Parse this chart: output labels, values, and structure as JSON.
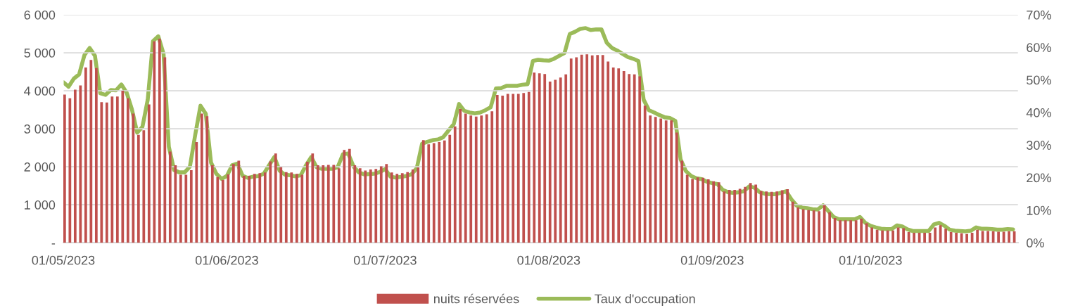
{
  "chart_data": {
    "type": "bar",
    "x": [
      "2023-05-01",
      "2023-05-02",
      "2023-05-03",
      "2023-05-04",
      "2023-05-05",
      "2023-05-06",
      "2023-05-07",
      "2023-05-08",
      "2023-05-09",
      "2023-05-10",
      "2023-05-11",
      "2023-05-12",
      "2023-05-13",
      "2023-05-14",
      "2023-05-15",
      "2023-05-16",
      "2023-05-17",
      "2023-05-18",
      "2023-05-19",
      "2023-05-20",
      "2023-05-21",
      "2023-05-22",
      "2023-05-23",
      "2023-05-24",
      "2023-05-25",
      "2023-05-26",
      "2023-05-27",
      "2023-05-28",
      "2023-05-29",
      "2023-05-30",
      "2023-05-31",
      "2023-06-01",
      "2023-06-02",
      "2023-06-03",
      "2023-06-04",
      "2023-06-05",
      "2023-06-06",
      "2023-06-07",
      "2023-06-08",
      "2023-06-09",
      "2023-06-10",
      "2023-06-11",
      "2023-06-12",
      "2023-06-13",
      "2023-06-14",
      "2023-06-15",
      "2023-06-16",
      "2023-06-17",
      "2023-06-18",
      "2023-06-19",
      "2023-06-20",
      "2023-06-21",
      "2023-06-22",
      "2023-06-23",
      "2023-06-24",
      "2023-06-25",
      "2023-06-26",
      "2023-06-27",
      "2023-06-28",
      "2023-06-29",
      "2023-06-30",
      "2023-07-01",
      "2023-07-02",
      "2023-07-03",
      "2023-07-04",
      "2023-07-05",
      "2023-07-06",
      "2023-07-07",
      "2023-07-08",
      "2023-07-09",
      "2023-07-10",
      "2023-07-11",
      "2023-07-12",
      "2023-07-13",
      "2023-07-14",
      "2023-07-15",
      "2023-07-16",
      "2023-07-17",
      "2023-07-18",
      "2023-07-19",
      "2023-07-20",
      "2023-07-21",
      "2023-07-22",
      "2023-07-23",
      "2023-07-24",
      "2023-07-25",
      "2023-07-26",
      "2023-07-27",
      "2023-07-28",
      "2023-07-29",
      "2023-07-30",
      "2023-07-31",
      "2023-08-01",
      "2023-08-02",
      "2023-08-03",
      "2023-08-04",
      "2023-08-05",
      "2023-08-06",
      "2023-08-07",
      "2023-08-08",
      "2023-08-09",
      "2023-08-10",
      "2023-08-11",
      "2023-08-12",
      "2023-08-13",
      "2023-08-14",
      "2023-08-15",
      "2023-08-16",
      "2023-08-17",
      "2023-08-18",
      "2023-08-19",
      "2023-08-20",
      "2023-08-21",
      "2023-08-22",
      "2023-08-23",
      "2023-08-24",
      "2023-08-25",
      "2023-08-26",
      "2023-08-27",
      "2023-08-28",
      "2023-08-29",
      "2023-08-30",
      "2023-08-31",
      "2023-09-01",
      "2023-09-02",
      "2023-09-03",
      "2023-09-04",
      "2023-09-05",
      "2023-09-06",
      "2023-09-07",
      "2023-09-08",
      "2023-09-09",
      "2023-09-10",
      "2023-09-11",
      "2023-09-12",
      "2023-09-13",
      "2023-09-14",
      "2023-09-15",
      "2023-09-16",
      "2023-09-17",
      "2023-09-18",
      "2023-09-19",
      "2023-09-20",
      "2023-09-21",
      "2023-09-22",
      "2023-09-23",
      "2023-09-24",
      "2023-09-25",
      "2023-09-26",
      "2023-09-27",
      "2023-09-28",
      "2023-09-29",
      "2023-09-30",
      "2023-10-01",
      "2023-10-02",
      "2023-10-03",
      "2023-10-04",
      "2023-10-05",
      "2023-10-06",
      "2023-10-07",
      "2023-10-08",
      "2023-10-09",
      "2023-10-10",
      "2023-10-11",
      "2023-10-12",
      "2023-10-13",
      "2023-10-14",
      "2023-10-15",
      "2023-10-16",
      "2023-10-17",
      "2023-10-18",
      "2023-10-19",
      "2023-10-20",
      "2023-10-21",
      "2023-10-22",
      "2023-10-23",
      "2023-10-24",
      "2023-10-25",
      "2023-10-26",
      "2023-10-27",
      "2023-10-28"
    ],
    "series": [
      {
        "name": "nuits réservées",
        "color": "#c0504d",
        "values": [
          3900,
          3800,
          4030,
          4140,
          4610,
          4810,
          4600,
          3700,
          3690,
          3850,
          3850,
          4000,
          3800,
          3400,
          2840,
          2960,
          3640,
          5300,
          5370,
          4880,
          2400,
          2040,
          1790,
          1790,
          1910,
          2650,
          3400,
          3330,
          2040,
          1730,
          1650,
          1800,
          2070,
          2160,
          1760,
          1760,
          1810,
          1830,
          1850,
          2140,
          2350,
          1990,
          1860,
          1850,
          1810,
          1790,
          2130,
          2350,
          2040,
          2040,
          2050,
          2050,
          1960,
          2440,
          2470,
          2040,
          1960,
          1900,
          1930,
          1940,
          2010,
          2070,
          1850,
          1810,
          1830,
          1860,
          1930,
          1980,
          2700,
          2590,
          2620,
          2650,
          2690,
          2840,
          3060,
          3520,
          3400,
          3350,
          3320,
          3350,
          3380,
          3460,
          3890,
          3870,
          3920,
          3920,
          3920,
          3940,
          3970,
          4480,
          4460,
          4440,
          4240,
          4290,
          4350,
          4430,
          4850,
          4880,
          4950,
          4960,
          4930,
          4940,
          4940,
          4770,
          4610,
          4590,
          4520,
          4440,
          4430,
          4380,
          3610,
          3350,
          3310,
          3270,
          3220,
          3220,
          2900,
          2160,
          1790,
          1680,
          1720,
          1710,
          1670,
          1620,
          1590,
          1350,
          1390,
          1390,
          1420,
          1470,
          1570,
          1530,
          1360,
          1350,
          1340,
          1350,
          1380,
          1410,
          1080,
          930,
          880,
          860,
          850,
          830,
          990,
          800,
          650,
          590,
          590,
          590,
          590,
          630,
          510,
          400,
          340,
          320,
          320,
          320,
          400,
          380,
          280,
          260,
          260,
          260,
          260,
          400,
          460,
          370,
          280,
          260,
          250,
          230,
          260,
          340,
          310,
          310,
          300,
          290,
          290,
          300,
          300
        ]
      },
      {
        "name": "Taux d'occupation",
        "type": "line",
        "axis": "y2",
        "color": "#9bbb59",
        "values": [
          49.3,
          47.9,
          50.4,
          51.7,
          57.6,
          59.8,
          57.4,
          45.9,
          45.4,
          46.9,
          46.8,
          48.6,
          46.1,
          41.0,
          33.8,
          35.6,
          43.9,
          61.9,
          63.4,
          58.0,
          29.5,
          22.3,
          21.6,
          21.6,
          23.4,
          33.1,
          42.1,
          39.6,
          24.6,
          21.2,
          19.6,
          20.5,
          23.8,
          24.3,
          20.5,
          19.9,
          20.3,
          20.5,
          21.2,
          23.8,
          26.3,
          22.1,
          20.9,
          20.7,
          20.4,
          20.7,
          23.8,
          26.3,
          23.2,
          22.7,
          22.7,
          22.7,
          23.2,
          27.2,
          27.4,
          23.4,
          21.6,
          21.0,
          21.1,
          21.2,
          21.7,
          22.6,
          20.3,
          20.0,
          20.2,
          20.5,
          21.0,
          22.9,
          30.4,
          31.0,
          31.5,
          31.7,
          32.4,
          34.4,
          36.4,
          42.6,
          40.5,
          40.0,
          39.7,
          40.0,
          40.7,
          41.6,
          47.4,
          47.5,
          48.2,
          48.2,
          48.2,
          48.5,
          48.7,
          55.8,
          56.2,
          56.0,
          55.9,
          56.5,
          57.4,
          58.3,
          64.1,
          64.8,
          65.7,
          65.9,
          65.3,
          65.5,
          65.5,
          61.4,
          59.8,
          59.0,
          58.0,
          57.0,
          56.5,
          55.8,
          43.9,
          40.7,
          40.0,
          39.2,
          38.5,
          38.3,
          37.4,
          25.6,
          22.0,
          20.5,
          19.8,
          19.5,
          18.7,
          18.3,
          18.0,
          16.2,
          15.5,
          15.3,
          15.5,
          15.8,
          17.3,
          16.9,
          15.5,
          15.0,
          14.9,
          14.9,
          15.3,
          15.8,
          13.3,
          11.4,
          10.8,
          10.6,
          10.3,
          10.2,
          11.5,
          9.7,
          7.9,
          7.2,
          7.2,
          7.2,
          7.2,
          7.9,
          6.1,
          5.2,
          4.7,
          4.3,
          4.2,
          4.2,
          5.3,
          5.0,
          4.1,
          3.6,
          3.6,
          3.6,
          3.6,
          5.6,
          6.1,
          5.2,
          4.0,
          3.7,
          3.6,
          3.5,
          3.7,
          4.7,
          4.3,
          4.3,
          4.2,
          4.0,
          4.0,
          4.2,
          4.1
        ]
      }
    ],
    "xlim": [
      "2023-05-01",
      "2023-10-29"
    ],
    "xticks": [
      {
        "value": "2023-05-01",
        "label": "01/05/2023"
      },
      {
        "value": "2023-06-01",
        "label": "01/06/2023"
      },
      {
        "value": "2023-07-01",
        "label": "01/07/2023"
      },
      {
        "value": "2023-08-01",
        "label": "01/08/2023"
      },
      {
        "value": "2023-09-01",
        "label": "01/09/2023"
      },
      {
        "value": "2023-10-01",
        "label": "01/10/2023"
      }
    ],
    "ylim": [
      0,
      6000
    ],
    "yticks": [
      {
        "value": 0,
        "label": "-"
      },
      {
        "value": 1000,
        "label": "1 000"
      },
      {
        "value": 2000,
        "label": "2 000"
      },
      {
        "value": 3000,
        "label": "3 000"
      },
      {
        "value": 4000,
        "label": "4 000"
      },
      {
        "value": 5000,
        "label": "5 000"
      },
      {
        "value": 6000,
        "label": "6 000"
      }
    ],
    "y2lim": [
      0,
      70
    ],
    "y2ticks": [
      {
        "value": 0,
        "label": "0%"
      },
      {
        "value": 10,
        "label": "10%"
      },
      {
        "value": 20,
        "label": "20%"
      },
      {
        "value": 30,
        "label": "30%"
      },
      {
        "value": 40,
        "label": "40%"
      },
      {
        "value": 50,
        "label": "50%"
      },
      {
        "value": 60,
        "label": "60%"
      },
      {
        "value": 70,
        "label": "70%"
      }
    ],
    "grid": "y",
    "legend": "bottom",
    "marker": "none"
  }
}
